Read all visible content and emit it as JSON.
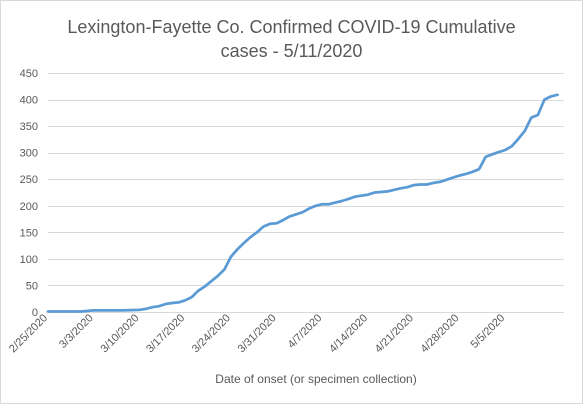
{
  "chart_data": {
    "type": "line",
    "title_line1": "Lexington-Fayette Co. Confirmed COVID-19 Cumulative",
    "title_line2": "cases - 5/11/2020",
    "xlabel": "Date of onset (or specimen collection)",
    "ylabel": "",
    "ylim": [
      0,
      450
    ],
    "yticks": [
      0,
      50,
      100,
      150,
      200,
      250,
      300,
      350,
      400,
      450
    ],
    "xlim": [
      "2/25/2020",
      "5/11/2020"
    ],
    "xticks": [
      "2/25/2020",
      "3/3/2020",
      "3/10/2020",
      "3/17/2020",
      "3/24/2020",
      "3/31/2020",
      "4/7/2020",
      "4/14/2020",
      "4/21/2020",
      "4/28/2020",
      "5/5/2020"
    ],
    "grid": "horizontal",
    "legend": "none",
    "series": [
      {
        "color": "#5b9bd5",
        "points": [
          [
            "2/25/2020",
            1
          ],
          [
            "3/1/2020",
            1
          ],
          [
            "3/3/2020",
            3
          ],
          [
            "3/7/2020",
            3
          ],
          [
            "3/10/2020",
            4
          ],
          [
            "3/11/2020",
            6
          ],
          [
            "3/12/2020",
            9
          ],
          [
            "3/13/2020",
            11
          ],
          [
            "3/14/2020",
            15
          ],
          [
            "3/15/2020",
            17
          ],
          [
            "3/16/2020",
            18
          ],
          [
            "3/17/2020",
            22
          ],
          [
            "3/18/2020",
            28
          ],
          [
            "3/19/2020",
            40
          ],
          [
            "3/20/2020",
            48
          ],
          [
            "3/21/2020",
            58
          ],
          [
            "3/22/2020",
            68
          ],
          [
            "3/23/2020",
            80
          ],
          [
            "3/24/2020",
            104
          ],
          [
            "3/25/2020",
            118
          ],
          [
            "3/26/2020",
            130
          ],
          [
            "3/27/2020",
            141
          ],
          [
            "3/28/2020",
            150
          ],
          [
            "3/29/2020",
            161
          ],
          [
            "3/30/2020",
            166
          ],
          [
            "3/31/2020",
            167
          ],
          [
            "4/1/2020",
            173
          ],
          [
            "4/2/2020",
            180
          ],
          [
            "4/3/2020",
            184
          ],
          [
            "4/4/2020",
            188
          ],
          [
            "4/5/2020",
            195
          ],
          [
            "4/6/2020",
            200
          ],
          [
            "4/7/2020",
            203
          ],
          [
            "4/8/2020",
            203
          ],
          [
            "4/9/2020",
            206
          ],
          [
            "4/10/2020",
            209
          ],
          [
            "4/11/2020",
            213
          ],
          [
            "4/12/2020",
            217
          ],
          [
            "4/13/2020",
            219
          ],
          [
            "4/14/2020",
            221
          ],
          [
            "4/15/2020",
            225
          ],
          [
            "4/16/2020",
            226
          ],
          [
            "4/17/2020",
            227
          ],
          [
            "4/18/2020",
            230
          ],
          [
            "4/19/2020",
            233
          ],
          [
            "4/20/2020",
            235
          ],
          [
            "4/21/2020",
            239
          ],
          [
            "4/22/2020",
            240
          ],
          [
            "4/23/2020",
            240
          ],
          [
            "4/24/2020",
            243
          ],
          [
            "4/25/2020",
            245
          ],
          [
            "4/26/2020",
            249
          ],
          [
            "4/27/2020",
            253
          ],
          [
            "4/28/2020",
            257
          ],
          [
            "4/29/2020",
            260
          ],
          [
            "4/30/2020",
            264
          ],
          [
            "5/1/2020",
            269
          ],
          [
            "5/2/2020",
            292
          ],
          [
            "5/3/2020",
            297
          ],
          [
            "5/4/2020",
            301
          ],
          [
            "5/5/2020",
            305
          ],
          [
            "5/6/2020",
            312
          ],
          [
            "5/7/2020",
            326
          ],
          [
            "5/8/2020",
            341
          ],
          [
            "5/9/2020",
            366
          ],
          [
            "5/10/2020",
            371
          ],
          [
            "5/11/2020",
            400
          ],
          [
            "5/12/2020",
            406
          ],
          [
            "5/13/2020",
            409
          ]
        ]
      }
    ]
  }
}
